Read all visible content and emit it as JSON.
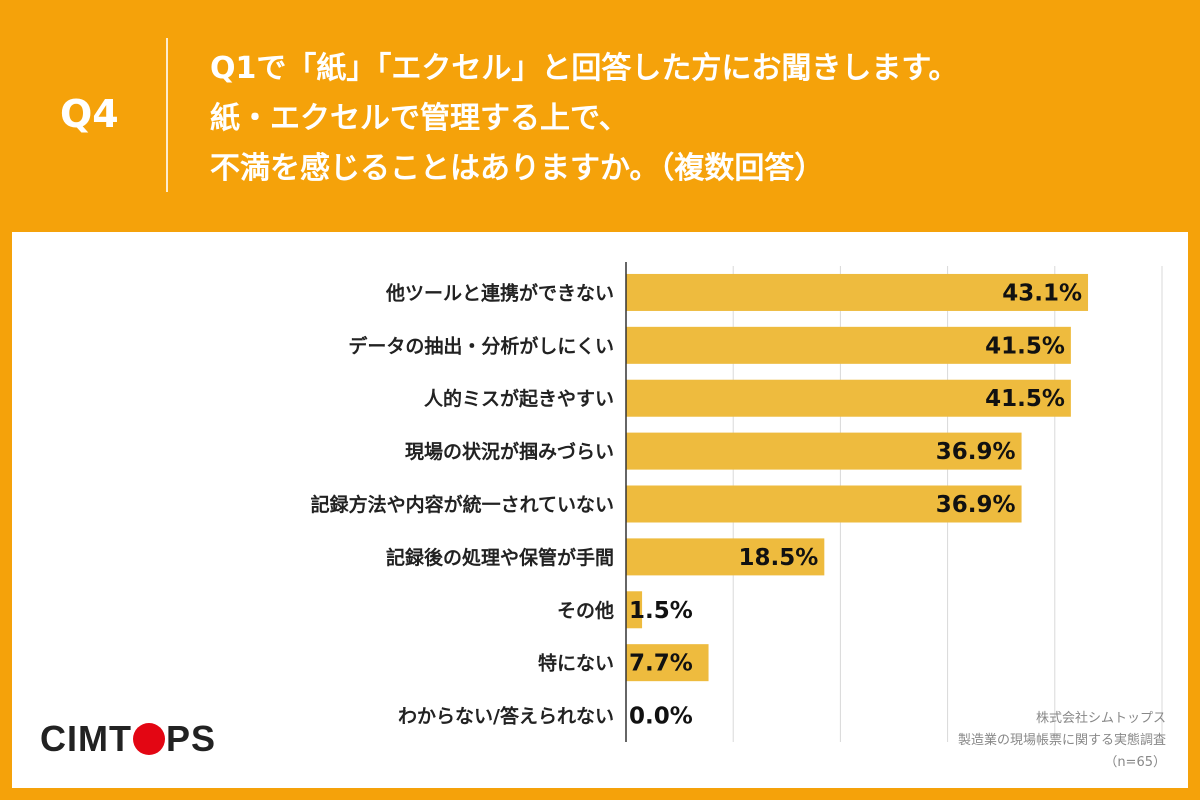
{
  "header": {
    "q_label": "Q4",
    "question_lines": [
      "Q1で「紙」「エクセル」と回答した方にお聞きします。",
      "紙・エクセルで管理する上で、",
      "不満を感じることはありますか。（複数回答）"
    ]
  },
  "footer": {
    "logo_left": "CIMT",
    "logo_right": "PS",
    "source_lines": [
      "株式会社シムトップス",
      "製造業の現場帳票に関する実態調査",
      "（n=65）"
    ]
  },
  "colors": {
    "background": "#f5a20a",
    "bar": "#eebb3e",
    "panel": "#ffffff",
    "logo_dot": "#e30613"
  },
  "chart_data": {
    "type": "bar",
    "orientation": "horizontal",
    "categories": [
      "他ツールと連携ができない",
      "データの抽出・分析がしにくい",
      "人的ミスが起きやすい",
      "現場の状況が掴みづらい",
      "記録方法や内容が統一されていない",
      "記録後の処理や保管が手間",
      "その他",
      "特にない",
      "わからない/答えられない"
    ],
    "values": [
      43.1,
      41.5,
      41.5,
      36.9,
      36.9,
      18.5,
      1.5,
      7.7,
      0.0
    ],
    "value_labels": [
      "43.1%",
      "41.5%",
      "41.5%",
      "36.9%",
      "36.9%",
      "18.5%",
      "1.5%",
      "7.7%",
      "0.0%"
    ],
    "xlim": [
      0,
      50
    ],
    "grid": true,
    "legend": "none"
  }
}
